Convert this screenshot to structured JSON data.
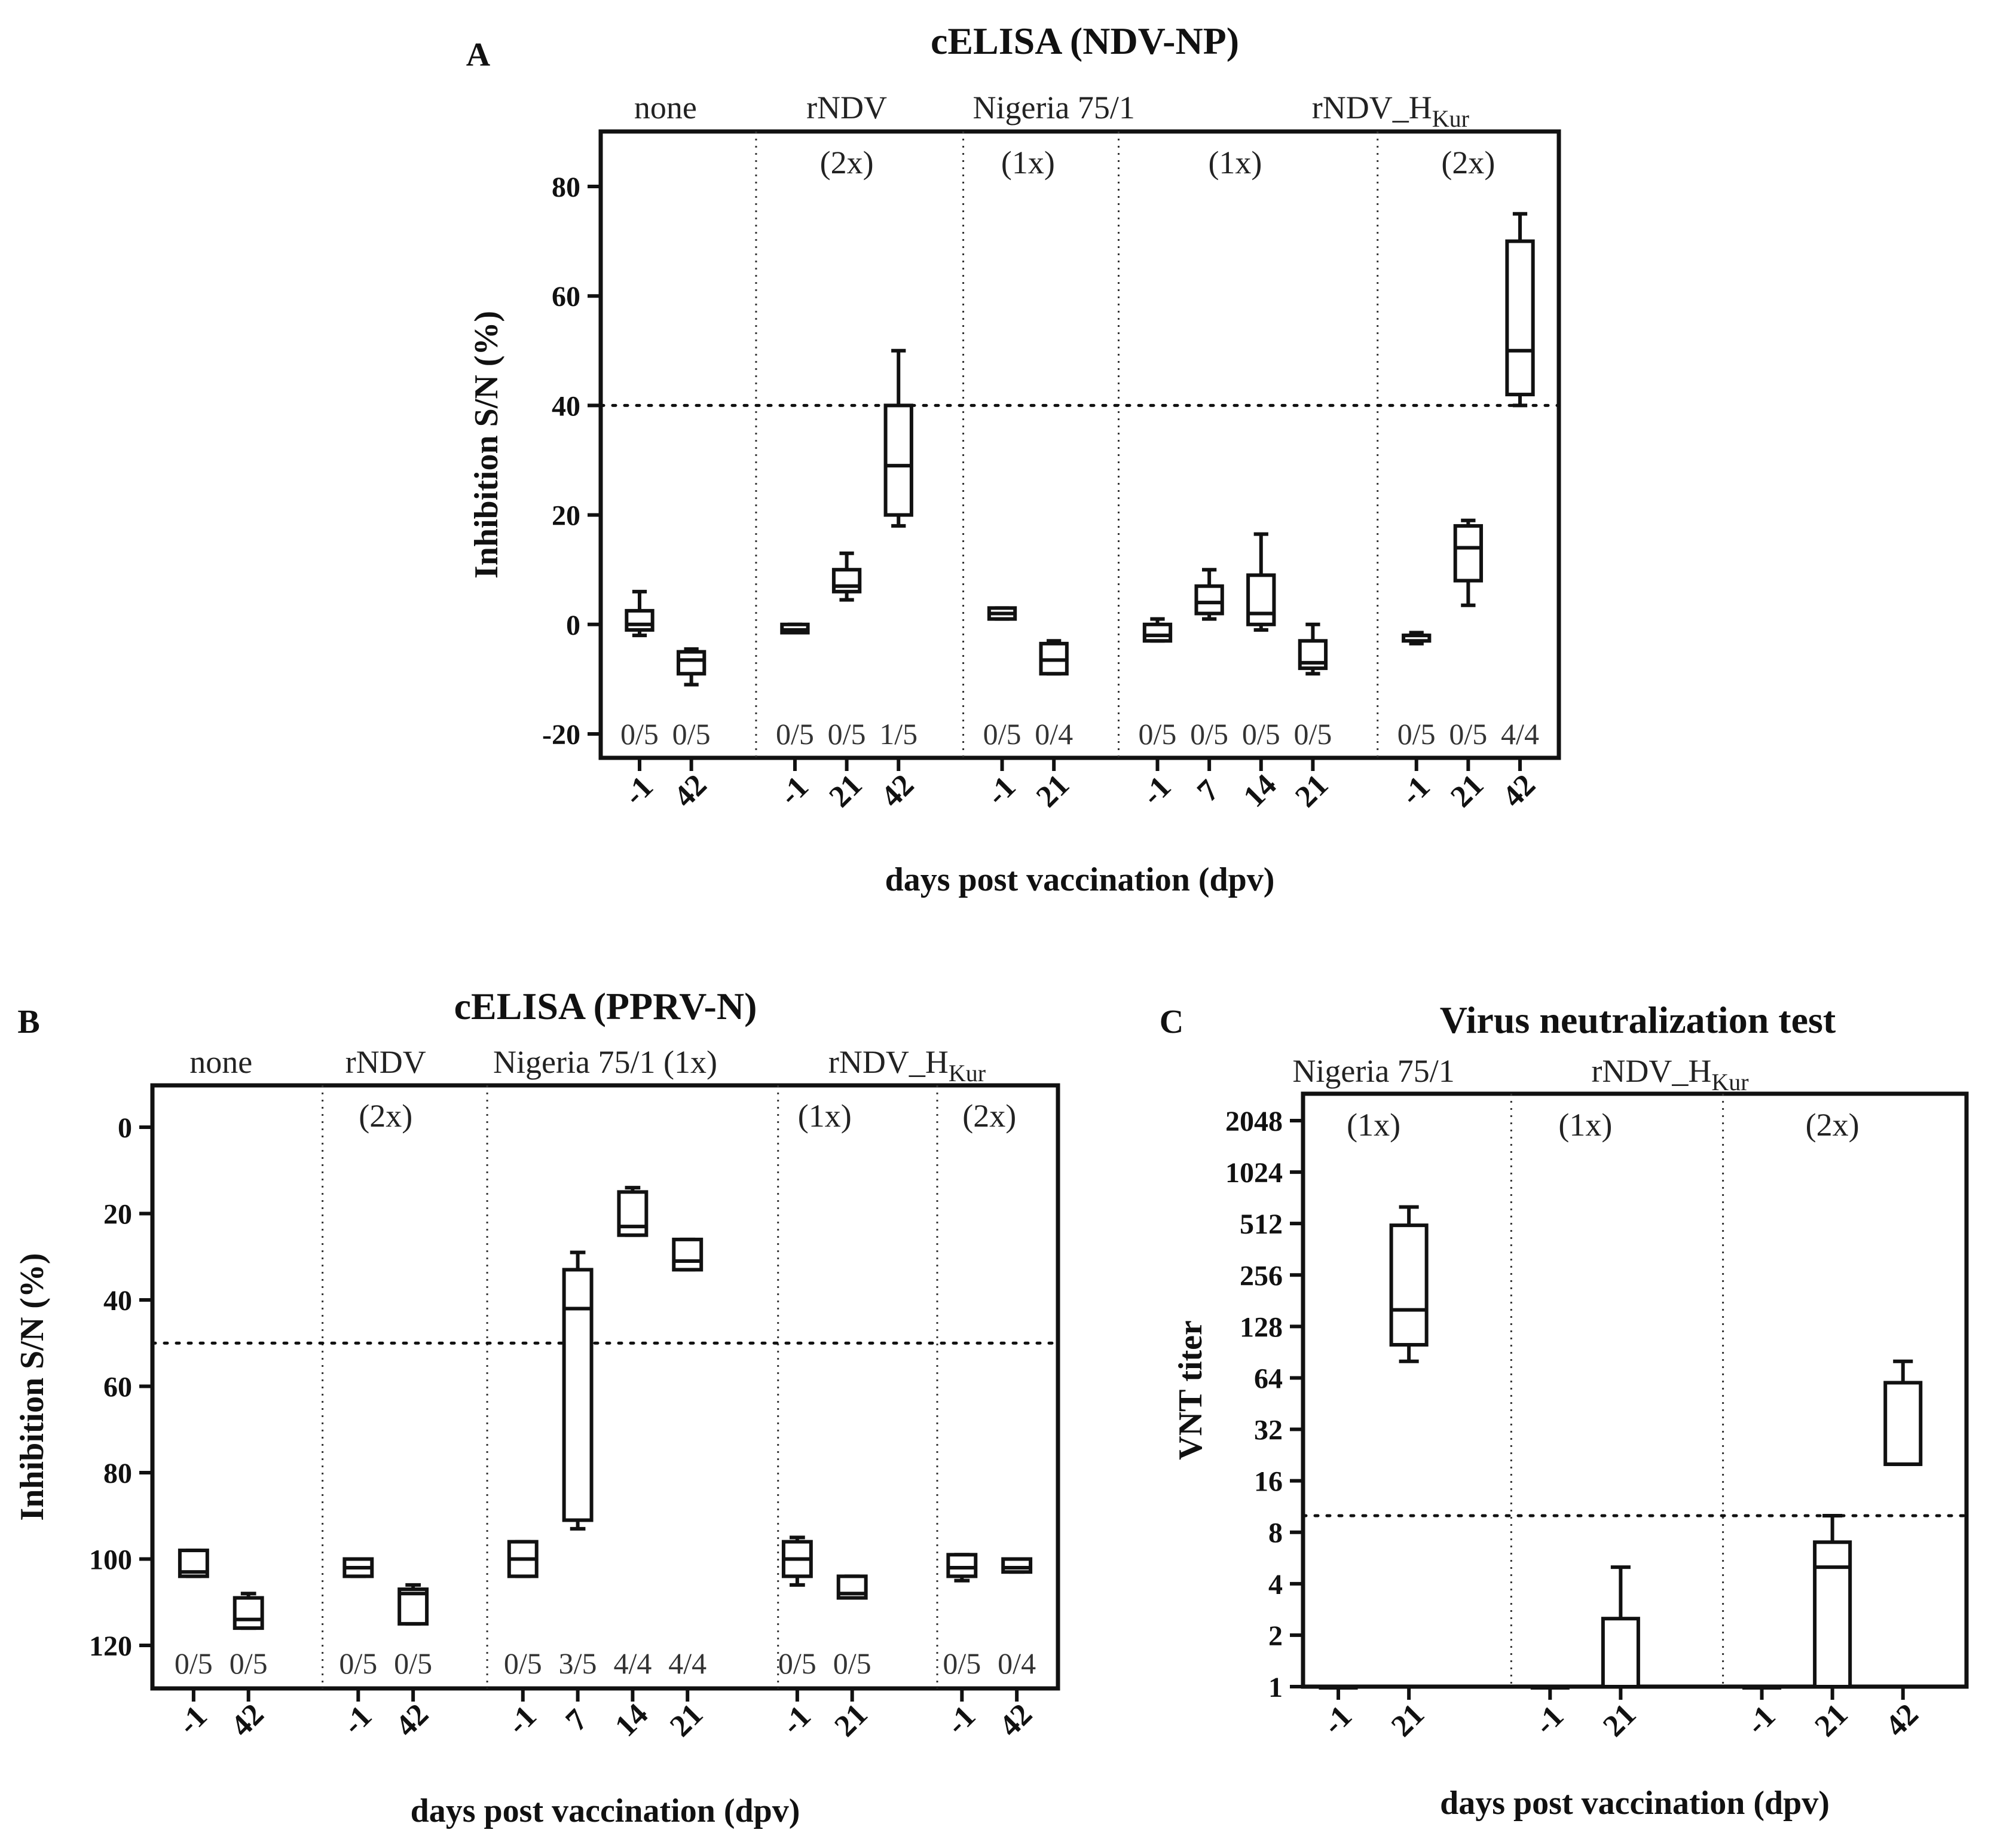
{
  "chart_data": [
    {
      "panel": "A",
      "type": "box",
      "title": "cELISA (NDV-NP)",
      "ylabel": "Inhibition S/N (%)",
      "xlabel": "days post vaccination (dpv)",
      "ylim": [
        -25,
        90
      ],
      "yscale": "linear",
      "yticks": [
        -20,
        0,
        20,
        40,
        60,
        80
      ],
      "threshold": 40,
      "groups": [
        {
          "name": "none",
          "dose": "",
          "categories": [
            "-1",
            "42"
          ],
          "ratios": [
            "0/5",
            "0/5"
          ],
          "boxes": [
            {
              "min": -2,
              "q1": -1,
              "median": 0,
              "q3": 2.5,
              "max": 6
            },
            {
              "min": -11,
              "q1": -9,
              "median": -6.5,
              "q3": -5,
              "max": -4.5
            }
          ]
        },
        {
          "name": "rNDV",
          "dose": "(2x)",
          "categories": [
            "-1",
            "21",
            "42"
          ],
          "ratios": [
            "0/5",
            "0/5",
            "1/5"
          ],
          "boxes": [
            {
              "min": -1.5,
              "q1": -1.5,
              "median": -1,
              "q3": 0,
              "max": 0
            },
            {
              "min": 4.5,
              "q1": 6,
              "median": 7,
              "q3": 10,
              "max": 13
            },
            {
              "min": 18,
              "q1": 20,
              "median": 29,
              "q3": 40,
              "max": 50
            }
          ]
        },
        {
          "name": "Nigeria 75/1",
          "dose": "(1x)",
          "categories": [
            "-1",
            "21"
          ],
          "ratios": [
            "0/5",
            "0/4"
          ],
          "boxes": [
            {
              "min": 1,
              "q1": 1,
              "median": 2,
              "q3": 3,
              "max": 3
            },
            {
              "min": -9,
              "q1": -9,
              "median": -6.5,
              "q3": -3.5,
              "max": -3
            }
          ]
        },
        {
          "name": "rNDV_HKur",
          "dose": "(1x)",
          "categories": [
            "-1",
            "7",
            "14",
            "21"
          ],
          "ratios": [
            "0/5",
            "0/5",
            "0/5",
            "0/5"
          ],
          "boxes": [
            {
              "min": -3,
              "q1": -3,
              "median": -2,
              "q3": 0,
              "max": 1
            },
            {
              "min": 1,
              "q1": 2,
              "median": 4,
              "q3": 7,
              "max": 10
            },
            {
              "min": -1,
              "q1": 0,
              "median": 2,
              "q3": 9,
              "max": 16.5
            },
            {
              "min": -9,
              "q1": -8,
              "median": -7,
              "q3": -3,
              "max": 0
            }
          ]
        },
        {
          "name": "rNDV_HKur",
          "dose": "(2x)",
          "categories": [
            "-1",
            "21",
            "42"
          ],
          "ratios": [
            "0/5",
            "0/5",
            "4/4"
          ],
          "boxes": [
            {
              "min": -3.5,
              "q1": -3,
              "median": -2,
              "q3": -2,
              "max": -1.5
            },
            {
              "min": 3.5,
              "q1": 8,
              "median": 14,
              "q3": 18,
              "max": 19
            },
            {
              "min": 40,
              "q1": 42,
              "median": 50,
              "q3": 70,
              "max": 75
            }
          ]
        }
      ]
    },
    {
      "panel": "B",
      "type": "box",
      "title": "cELISA (PPRV-N)",
      "ylabel": "Inhibition S/N (%)",
      "xlabel": "days post vaccination (dpv)",
      "ylim": [
        130,
        -10
      ],
      "yscale": "linear-inverted",
      "yticks": [
        0,
        20,
        40,
        60,
        80,
        100,
        120
      ],
      "threshold": 50,
      "groups": [
        {
          "name": "none",
          "dose": "",
          "categories": [
            "-1",
            "42"
          ],
          "ratios": [
            "0/5",
            "0/5"
          ],
          "boxes": [
            {
              "min": 98,
              "q1": 98,
              "median": 103,
              "q3": 104,
              "max": 104
            },
            {
              "min": 108,
              "q1": 109,
              "median": 114,
              "q3": 116,
              "max": 116
            }
          ]
        },
        {
          "name": "rNDV",
          "dose": "(2x)",
          "categories": [
            "-1",
            "42"
          ],
          "ratios": [
            "0/5",
            "0/5"
          ],
          "boxes": [
            {
              "min": 100,
              "q1": 100,
              "median": 102,
              "q3": 104,
              "max": 104
            },
            {
              "min": 106,
              "q1": 107,
              "median": 108,
              "q3": 115,
              "max": 115
            }
          ]
        },
        {
          "name": "Nigeria 75/1 (1x)",
          "dose": "",
          "categories": [
            "-1",
            "7",
            "14",
            "21"
          ],
          "ratios": [
            "0/5",
            "3/5",
            "4/4",
            "4/4"
          ],
          "boxes": [
            {
              "min": 96,
              "q1": 96,
              "median": 100,
              "q3": 104,
              "max": 104
            },
            {
              "min": 29,
              "q1": 33,
              "median": 42,
              "q3": 91,
              "max": 93
            },
            {
              "min": 14,
              "q1": 15,
              "median": 23,
              "q3": 25,
              "max": 25
            },
            {
              "min": 26,
              "q1": 26,
              "median": 31,
              "q3": 33,
              "max": 33
            }
          ]
        },
        {
          "name": "rNDV_HKur",
          "dose": "(1x)",
          "categories": [
            "-1",
            "21"
          ],
          "ratios": [
            "0/5",
            "0/5"
          ],
          "boxes": [
            {
              "min": 95,
              "q1": 96,
              "median": 100,
              "q3": 104,
              "max": 106
            },
            {
              "min": 104,
              "q1": 104,
              "median": 108,
              "q3": 109,
              "max": 109
            }
          ]
        },
        {
          "name": "rNDV_HKur",
          "dose": "(2x)",
          "categories": [
            "-1",
            "42"
          ],
          "ratios": [
            "0/5",
            "0/4"
          ],
          "boxes": [
            {
              "min": 99,
              "q1": 99,
              "median": 102,
              "q3": 104,
              "max": 105
            },
            {
              "min": 100,
              "q1": 100,
              "median": 102,
              "q3": 103,
              "max": 103
            }
          ]
        }
      ]
    },
    {
      "panel": "C",
      "type": "box",
      "title": "Virus neutralization test",
      "ylabel": "VNT titer",
      "xlabel": "days post vaccination (dpv)",
      "ylim": [
        1,
        2048
      ],
      "yscale": "log2",
      "yticks": [
        1,
        2,
        4,
        8,
        16,
        32,
        64,
        128,
        256,
        512,
        1024,
        2048
      ],
      "threshold": 10,
      "groups": [
        {
          "name": "Nigeria 75/1",
          "dose": "(1x)",
          "categories": [
            "-1",
            "21"
          ],
          "boxes": [
            {
              "min": 1,
              "q1": 1,
              "median": 1,
              "q3": 1,
              "max": 1
            },
            {
              "min": 80,
              "q1": 100,
              "median": 160,
              "q3": 500,
              "max": 640
            }
          ]
        },
        {
          "name": "rNDV_HKur",
          "dose": "(1x)",
          "categories": [
            "-1",
            "21"
          ],
          "boxes": [
            {
              "min": 1,
              "q1": 1,
              "median": 1,
              "q3": 1,
              "max": 1
            },
            {
              "min": 1,
              "q1": 1,
              "median": 1,
              "q3": 2.5,
              "max": 5
            }
          ]
        },
        {
          "name": "rNDV_HKur",
          "dose": "(2x)",
          "categories": [
            "-1",
            "21",
            "42"
          ],
          "boxes": [
            {
              "min": 1,
              "q1": 1,
              "median": 1,
              "q3": 1,
              "max": 1
            },
            {
              "min": 1,
              "q1": 1,
              "median": 5,
              "q3": 7,
              "max": 10
            },
            {
              "min": 20,
              "q1": 20,
              "median": 20,
              "q3": 60,
              "max": 80
            }
          ]
        }
      ]
    }
  ]
}
